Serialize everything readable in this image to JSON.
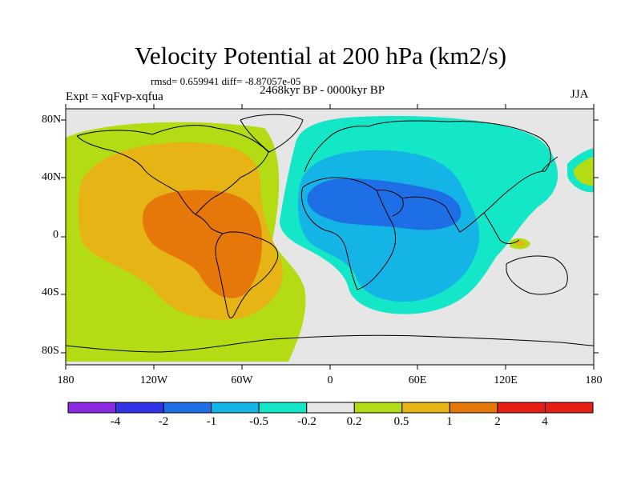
{
  "header": {
    "title": "Velocity Potential at 200 hPa (km2/s)",
    "stats": "rmsd= 0.659941 diff= -8.87057e-05",
    "period": "2468kyr BP - 0000kyr BP",
    "experiment": "Expt = xqFvp-xqfua",
    "season": "JJA"
  },
  "map": {
    "projection": "cylindrical equidistant",
    "lat_labels": [
      "80N",
      "40N",
      "0",
      "40S",
      "80S"
    ],
    "lon_labels": [
      "180",
      "120W",
      "60W",
      "0",
      "60E",
      "120E",
      "180"
    ],
    "background_color": "#e6e6e6",
    "field": "velocity potential anomaly at 200 hPa"
  },
  "colorbar": {
    "labels": [
      "-4",
      "-2",
      "-1",
      "-0.5",
      "-0.2",
      "0.2",
      "0.5",
      "1",
      "2",
      "4"
    ],
    "colors": [
      "#8a2be2",
      "#3232e6",
      "#1e6fe6",
      "#14b4e6",
      "#14e6c8",
      "#e6e6e6",
      "#b4dc14",
      "#e6b414",
      "#e6780a",
      "#e61e14",
      "#e61e14"
    ]
  }
}
